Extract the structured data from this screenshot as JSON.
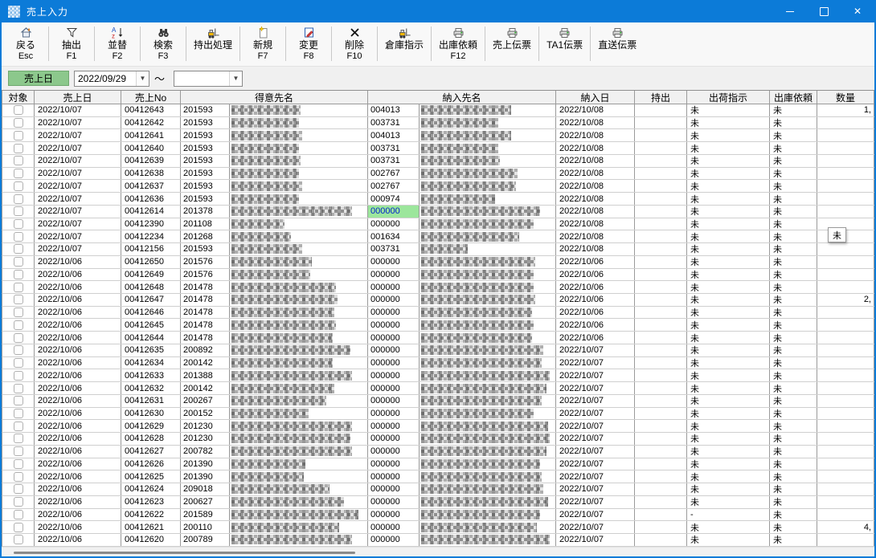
{
  "window": {
    "title": "売上入力",
    "controls": {
      "minimize": "最小化",
      "maximize": "最大化",
      "close": "閉じる"
    }
  },
  "colors": {
    "titlebar": "#0C7BD8",
    "filter_label_bg": "#8CC88C",
    "selected_cell_bg": "#9CE69C",
    "selected_cell_text": "#0022CC"
  },
  "toolbar": [
    {
      "label": "戻る",
      "sub": "Esc",
      "icon": "home-icon"
    },
    {
      "label": "抽出",
      "sub": "F1",
      "icon": "filter-icon"
    },
    {
      "label": "並替",
      "sub": "F2",
      "icon": "sort-az-icon"
    },
    {
      "label": "検索",
      "sub": "F3",
      "icon": "binoculars-icon"
    },
    {
      "label": "持出処理",
      "sub": "",
      "icon": "forklift-icon"
    },
    {
      "label": "新規",
      "sub": "F7",
      "icon": "new-document-icon"
    },
    {
      "label": "変更",
      "sub": "F8",
      "icon": "edit-document-icon"
    },
    {
      "label": "削除",
      "sub": "F10",
      "icon": "delete-x-icon"
    },
    {
      "label": "倉庫指示",
      "sub": "",
      "icon": "forklift-icon"
    },
    {
      "label": "出庫依頼",
      "sub": "F12",
      "icon": "printer-icon"
    },
    {
      "label": "売上伝票",
      "sub": "",
      "icon": "printer-icon"
    },
    {
      "label": "TA1伝票",
      "sub": "",
      "icon": "printer-icon"
    },
    {
      "label": "直送伝票",
      "sub": "",
      "icon": "printer-icon"
    }
  ],
  "filter": {
    "label": "売上日",
    "date_from": "2022/09/29",
    "range_separator": "～",
    "date_to": ""
  },
  "tooltip": {
    "text": "未"
  },
  "table": {
    "headers": [
      "対象",
      "売上日",
      "売上No",
      "得意先名",
      "納入先名",
      "納入日",
      "持出",
      "出荷指示",
      "出庫依頼",
      "数量"
    ],
    "row_fields": [
      "sales_date",
      "sales_no",
      "customer_code",
      "delivery_code",
      "delivery_date",
      "carry_out",
      "ship_instruction",
      "issue_request",
      "qty"
    ],
    "selected_cell": {
      "row_index": 8,
      "field": "delivery_code"
    },
    "rows": [
      [
        "2022/10/07",
        "00412643",
        "201593",
        "004013",
        "2022/10/08",
        "",
        "未",
        "未",
        "1,"
      ],
      [
        "2022/10/07",
        "00412642",
        "201593",
        "003731",
        "2022/10/08",
        "",
        "未",
        "未",
        ""
      ],
      [
        "2022/10/07",
        "00412641",
        "201593",
        "004013",
        "2022/10/08",
        "",
        "未",
        "未",
        ""
      ],
      [
        "2022/10/07",
        "00412640",
        "201593",
        "003731",
        "2022/10/08",
        "",
        "未",
        "未",
        ""
      ],
      [
        "2022/10/07",
        "00412639",
        "201593",
        "003731",
        "2022/10/08",
        "",
        "未",
        "未",
        ""
      ],
      [
        "2022/10/07",
        "00412638",
        "201593",
        "002767",
        "2022/10/08",
        "",
        "未",
        "未",
        ""
      ],
      [
        "2022/10/07",
        "00412637",
        "201593",
        "002767",
        "2022/10/08",
        "",
        "未",
        "未",
        ""
      ],
      [
        "2022/10/07",
        "00412636",
        "201593",
        "000974",
        "2022/10/08",
        "",
        "未",
        "未",
        ""
      ],
      [
        "2022/10/07",
        "00412614",
        "201378",
        "000000",
        "2022/10/08",
        "",
        "未",
        "未",
        ""
      ],
      [
        "2022/10/07",
        "00412390",
        "201108",
        "000000",
        "2022/10/08",
        "",
        "未",
        "未",
        ""
      ],
      [
        "2022/10/07",
        "00412234",
        "201268",
        "001634",
        "2022/10/08",
        "",
        "未",
        "未",
        ""
      ],
      [
        "2022/10/07",
        "00412156",
        "201593",
        "003731",
        "2022/10/08",
        "",
        "未",
        "未",
        ""
      ],
      [
        "2022/10/06",
        "00412650",
        "201576",
        "000000",
        "2022/10/06",
        "",
        "未",
        "未",
        ""
      ],
      [
        "2022/10/06",
        "00412649",
        "201576",
        "000000",
        "2022/10/06",
        "",
        "未",
        "未",
        ""
      ],
      [
        "2022/10/06",
        "00412648",
        "201478",
        "000000",
        "2022/10/06",
        "",
        "未",
        "未",
        ""
      ],
      [
        "2022/10/06",
        "00412647",
        "201478",
        "000000",
        "2022/10/06",
        "",
        "未",
        "未",
        "2,"
      ],
      [
        "2022/10/06",
        "00412646",
        "201478",
        "000000",
        "2022/10/06",
        "",
        "未",
        "未",
        ""
      ],
      [
        "2022/10/06",
        "00412645",
        "201478",
        "000000",
        "2022/10/06",
        "",
        "未",
        "未",
        ""
      ],
      [
        "2022/10/06",
        "00412644",
        "201478",
        "000000",
        "2022/10/06",
        "",
        "未",
        "未",
        ""
      ],
      [
        "2022/10/06",
        "00412635",
        "200892",
        "000000",
        "2022/10/07",
        "",
        "未",
        "未",
        ""
      ],
      [
        "2022/10/06",
        "00412634",
        "200142",
        "000000",
        "2022/10/07",
        "",
        "未",
        "未",
        ""
      ],
      [
        "2022/10/06",
        "00412633",
        "201388",
        "000000",
        "2022/10/07",
        "",
        "未",
        "未",
        ""
      ],
      [
        "2022/10/06",
        "00412632",
        "200142",
        "000000",
        "2022/10/07",
        "",
        "未",
        "未",
        ""
      ],
      [
        "2022/10/06",
        "00412631",
        "200267",
        "000000",
        "2022/10/07",
        "",
        "未",
        "未",
        ""
      ],
      [
        "2022/10/06",
        "00412630",
        "200152",
        "000000",
        "2022/10/07",
        "",
        "未",
        "未",
        ""
      ],
      [
        "2022/10/06",
        "00412629",
        "201230",
        "000000",
        "2022/10/07",
        "",
        "未",
        "未",
        ""
      ],
      [
        "2022/10/06",
        "00412628",
        "201230",
        "000000",
        "2022/10/07",
        "",
        "未",
        "未",
        ""
      ],
      [
        "2022/10/06",
        "00412627",
        "200782",
        "000000",
        "2022/10/07",
        "",
        "未",
        "未",
        ""
      ],
      [
        "2022/10/06",
        "00412626",
        "201390",
        "000000",
        "2022/10/07",
        "",
        "未",
        "未",
        ""
      ],
      [
        "2022/10/06",
        "00412625",
        "201390",
        "000000",
        "2022/10/07",
        "",
        "未",
        "未",
        ""
      ],
      [
        "2022/10/06",
        "00412624",
        "209018",
        "000000",
        "2022/10/07",
        "",
        "未",
        "未",
        ""
      ],
      [
        "2022/10/06",
        "00412623",
        "200627",
        "000000",
        "2022/10/07",
        "",
        "未",
        "未",
        ""
      ],
      [
        "2022/10/06",
        "00412622",
        "201589",
        "000000",
        "2022/10/07",
        "",
        "-",
        "未",
        ""
      ],
      [
        "2022/10/06",
        "00412621",
        "200110",
        "000000",
        "2022/10/07",
        "",
        "未",
        "未",
        "4,"
      ],
      [
        "2022/10/06",
        "00412620",
        "200789",
        "000000",
        "2022/10/07",
        "",
        "未",
        "未",
        ""
      ]
    ]
  }
}
